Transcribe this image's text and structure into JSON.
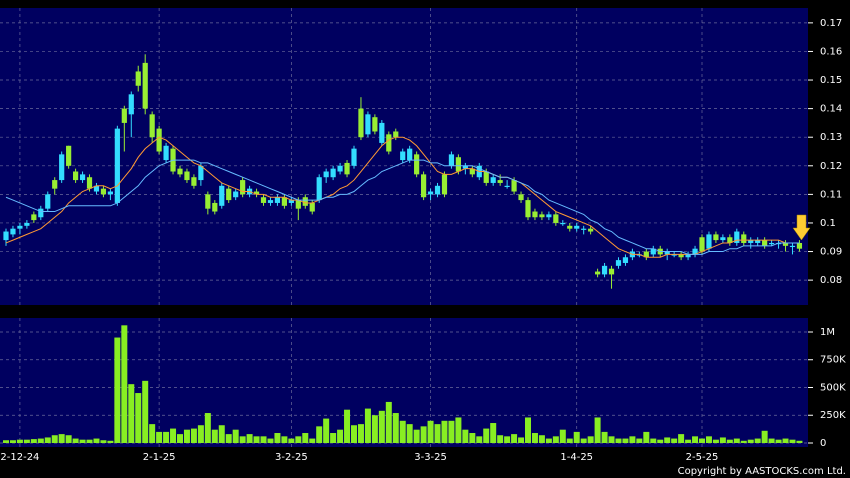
{
  "chart_data": [
    {
      "type": "candlestick",
      "categories": [
        null,
        null,
        "2-12-24",
        null,
        null,
        null,
        null,
        null,
        null,
        null,
        null,
        null,
        null,
        null,
        null,
        null,
        null,
        null,
        null,
        null,
        null,
        null,
        "2-1-25",
        null,
        null,
        null,
        null,
        null,
        null,
        null,
        null,
        null,
        null,
        null,
        null,
        null,
        null,
        null,
        null,
        null,
        null,
        "3-2-25",
        null,
        null,
        null,
        null,
        null,
        null,
        null,
        null,
        null,
        null,
        null,
        null,
        null,
        null,
        null,
        null,
        null,
        null,
        null,
        "3-3-25",
        null,
        null,
        null,
        null,
        null,
        null,
        null,
        null,
        null,
        null,
        null,
        null,
        null,
        null,
        null,
        null,
        null,
        null,
        null,
        null,
        "1-4-25",
        null,
        null,
        null,
        null,
        null,
        null,
        null,
        null,
        null,
        null,
        null,
        null,
        null,
        null,
        null,
        null,
        null,
        "2-5-25",
        null,
        null,
        null,
        null,
        null,
        null,
        null,
        null,
        null,
        null,
        null,
        null,
        null,
        null
      ],
      "open": [
        0.094,
        0.096,
        0.098,
        0.099,
        0.103,
        0.102,
        0.105,
        0.115,
        0.115,
        0.127,
        0.118,
        0.115,
        0.116,
        0.111,
        0.112,
        0.11,
        0.107,
        0.14,
        0.138,
        0.153,
        0.156,
        0.138,
        0.133,
        0.122,
        0.126,
        0.119,
        0.118,
        0.116,
        0.115,
        0.11,
        0.107,
        0.106,
        0.112,
        0.109,
        0.115,
        0.11,
        0.111,
        0.109,
        0.107,
        0.107,
        0.109,
        0.107,
        0.108,
        0.109,
        0.107,
        0.108,
        0.116,
        0.116,
        0.118,
        0.121,
        0.12,
        0.14,
        0.131,
        0.137,
        0.128,
        0.131,
        0.132,
        0.122,
        0.122,
        0.124,
        0.117,
        0.11,
        0.11,
        0.117,
        0.12,
        0.123,
        0.119,
        0.119,
        0.116,
        0.118,
        0.114,
        0.115,
        0.113,
        0.115,
        0.11,
        0.108,
        0.104,
        0.103,
        0.102,
        0.103,
        0.1,
        0.099,
        0.098,
        0.098,
        0.098,
        0.083,
        0.082,
        0.084,
        0.085,
        0.086,
        0.088,
        0.089,
        0.09,
        0.089,
        0.091,
        0.089,
        0.089,
        0.089,
        0.088,
        0.089,
        0.095,
        0.091,
        0.096,
        0.094,
        0.095,
        0.093,
        0.096,
        0.093,
        0.093,
        0.094,
        0.093,
        0.093,
        0.093,
        0.092,
        0.093
      ],
      "high": [
        0.098,
        0.099,
        0.1,
        0.101,
        0.104,
        0.106,
        0.111,
        0.116,
        0.125,
        0.127,
        0.119,
        0.118,
        0.117,
        0.114,
        0.113,
        0.112,
        0.134,
        0.141,
        0.146,
        0.155,
        0.159,
        0.139,
        0.134,
        0.128,
        0.127,
        0.12,
        0.119,
        0.117,
        0.121,
        0.111,
        0.108,
        0.114,
        0.113,
        0.112,
        0.116,
        0.113,
        0.112,
        0.11,
        0.109,
        0.11,
        0.11,
        0.109,
        0.109,
        0.11,
        0.108,
        0.117,
        0.119,
        0.12,
        0.121,
        0.122,
        0.127,
        0.144,
        0.139,
        0.138,
        0.136,
        0.132,
        0.133,
        0.126,
        0.127,
        0.125,
        0.118,
        0.112,
        0.114,
        0.118,
        0.125,
        0.124,
        0.121,
        0.12,
        0.121,
        0.119,
        0.117,
        0.117,
        0.115,
        0.116,
        0.111,
        0.109,
        0.105,
        0.104,
        0.104,
        0.104,
        0.101,
        0.1,
        0.1,
        0.099,
        0.099,
        0.084,
        0.086,
        0.085,
        0.088,
        0.089,
        0.091,
        0.09,
        0.091,
        0.092,
        0.092,
        0.091,
        0.09,
        0.09,
        0.09,
        0.092,
        0.096,
        0.097,
        0.097,
        0.096,
        0.096,
        0.098,
        0.097,
        0.095,
        0.095,
        0.095,
        0.094,
        0.094,
        0.094,
        0.093,
        0.094
      ],
      "low": [
        0.092,
        0.095,
        0.096,
        0.098,
        0.1,
        0.101,
        0.104,
        0.11,
        0.114,
        0.119,
        0.114,
        0.114,
        0.111,
        0.11,
        0.109,
        0.108,
        0.106,
        0.125,
        0.13,
        0.146,
        0.138,
        0.128,
        0.124,
        0.121,
        0.117,
        0.116,
        0.114,
        0.112,
        0.113,
        0.103,
        0.103,
        0.105,
        0.107,
        0.108,
        0.109,
        0.109,
        0.109,
        0.106,
        0.106,
        0.106,
        0.105,
        0.106,
        0.101,
        0.105,
        0.103,
        0.107,
        0.114,
        0.115,
        0.117,
        0.116,
        0.119,
        0.129,
        0.13,
        0.131,
        0.127,
        0.124,
        0.129,
        0.121,
        0.121,
        0.116,
        0.108,
        0.108,
        0.109,
        0.109,
        0.119,
        0.117,
        0.117,
        0.116,
        0.115,
        0.113,
        0.113,
        0.113,
        0.112,
        0.11,
        0.107,
        0.101,
        0.101,
        0.101,
        0.101,
        0.099,
        0.099,
        0.097,
        0.097,
        0.096,
        0.096,
        0.081,
        0.081,
        0.077,
        0.084,
        0.085,
        0.087,
        0.088,
        0.087,
        0.088,
        0.088,
        0.087,
        0.088,
        0.087,
        0.087,
        0.088,
        0.089,
        0.09,
        0.093,
        0.093,
        0.092,
        0.092,
        0.092,
        0.091,
        0.092,
        0.091,
        0.092,
        0.091,
        0.09,
        0.089,
        0.09
      ],
      "close": [
        0.097,
        0.098,
        0.099,
        0.1,
        0.101,
        0.105,
        0.11,
        0.112,
        0.124,
        0.12,
        0.115,
        0.117,
        0.112,
        0.113,
        0.11,
        0.111,
        0.133,
        0.135,
        0.145,
        0.148,
        0.14,
        0.13,
        0.125,
        0.127,
        0.118,
        0.117,
        0.115,
        0.113,
        0.12,
        0.105,
        0.104,
        0.113,
        0.108,
        0.111,
        0.11,
        0.112,
        0.11,
        0.107,
        0.108,
        0.109,
        0.106,
        0.108,
        0.105,
        0.106,
        0.104,
        0.116,
        0.118,
        0.119,
        0.12,
        0.117,
        0.126,
        0.13,
        0.138,
        0.132,
        0.135,
        0.125,
        0.13,
        0.125,
        0.126,
        0.117,
        0.109,
        0.111,
        0.113,
        0.11,
        0.124,
        0.118,
        0.12,
        0.117,
        0.12,
        0.114,
        0.116,
        0.114,
        0.113,
        0.111,
        0.108,
        0.102,
        0.102,
        0.102,
        0.103,
        0.1,
        0.1,
        0.098,
        0.099,
        0.098,
        0.097,
        0.082,
        0.085,
        0.082,
        0.087,
        0.088,
        0.09,
        0.089,
        0.088,
        0.091,
        0.089,
        0.09,
        0.089,
        0.088,
        0.089,
        0.091,
        0.09,
        0.096,
        0.094,
        0.095,
        0.093,
        0.097,
        0.093,
        0.094,
        0.094,
        0.092,
        0.093,
        0.093,
        0.092,
        0.092,
        0.091
      ],
      "up_color": "#33ddff",
      "down_color": "#99ee33",
      "series": [
        {
          "color": "#ff9933",
          "values": [
            0.093,
            0.094,
            0.095,
            0.096,
            0.097,
            0.098,
            0.1,
            0.102,
            0.104,
            0.107,
            0.109,
            0.111,
            0.112,
            0.113,
            0.113,
            0.112,
            0.113,
            0.116,
            0.119,
            0.123,
            0.126,
            0.128,
            0.13,
            0.129,
            0.127,
            0.125,
            0.123,
            0.121,
            0.12,
            0.118,
            0.116,
            0.114,
            0.113,
            0.112,
            0.111,
            0.111,
            0.11,
            0.11,
            0.109,
            0.109,
            0.109,
            0.108,
            0.108,
            0.107,
            0.107,
            0.108,
            0.109,
            0.11,
            0.112,
            0.113,
            0.115,
            0.118,
            0.121,
            0.124,
            0.127,
            0.129,
            0.13,
            0.13,
            0.129,
            0.127,
            0.124,
            0.121,
            0.118,
            0.117,
            0.117,
            0.118,
            0.119,
            0.119,
            0.118,
            0.118,
            0.117,
            0.116,
            0.116,
            0.115,
            0.114,
            0.112,
            0.11,
            0.108,
            0.106,
            0.104,
            0.103,
            0.102,
            0.101,
            0.1,
            0.099,
            0.097,
            0.095,
            0.093,
            0.091,
            0.09,
            0.089,
            0.089,
            0.088,
            0.088,
            0.088,
            0.089,
            0.089,
            0.089,
            0.089,
            0.089,
            0.09,
            0.091,
            0.092,
            0.093,
            0.093,
            0.094,
            0.094,
            0.094,
            0.094,
            0.094,
            0.094,
            0.094,
            0.093,
            0.093,
            0.093
          ]
        },
        {
          "color": "#66bbff",
          "values": [
            0.109,
            0.108,
            0.107,
            0.106,
            0.105,
            0.104,
            0.104,
            0.104,
            0.105,
            0.106,
            0.106,
            0.106,
            0.106,
            0.106,
            0.106,
            0.106,
            0.107,
            0.109,
            0.111,
            0.113,
            0.116,
            0.118,
            0.12,
            0.121,
            0.122,
            0.122,
            0.122,
            0.122,
            0.121,
            0.121,
            0.12,
            0.119,
            0.118,
            0.117,
            0.116,
            0.115,
            0.114,
            0.113,
            0.112,
            0.111,
            0.11,
            0.109,
            0.108,
            0.108,
            0.108,
            0.108,
            0.109,
            0.109,
            0.11,
            0.11,
            0.111,
            0.113,
            0.115,
            0.116,
            0.118,
            0.119,
            0.12,
            0.121,
            0.122,
            0.122,
            0.122,
            0.121,
            0.121,
            0.12,
            0.12,
            0.12,
            0.12,
            0.12,
            0.119,
            0.118,
            0.117,
            0.116,
            0.116,
            0.115,
            0.114,
            0.113,
            0.111,
            0.11,
            0.108,
            0.107,
            0.106,
            0.105,
            0.104,
            0.103,
            0.101,
            0.1,
            0.098,
            0.097,
            0.095,
            0.094,
            0.093,
            0.092,
            0.091,
            0.091,
            0.09,
            0.09,
            0.09,
            0.09,
            0.089,
            0.089,
            0.089,
            0.09,
            0.09,
            0.09,
            0.091,
            0.091,
            0.092,
            0.092,
            0.092,
            0.092,
            0.092,
            0.093,
            0.093,
            0.093,
            0.093
          ]
        }
      ],
      "ylim": [
        0.0713,
        0.1752
      ],
      "yticks": [
        0.08,
        0.09,
        0.1,
        0.11,
        0.12,
        0.13,
        0.14,
        0.15,
        0.16,
        0.17
      ],
      "grid": true
    },
    {
      "type": "bar",
      "values": [
        25000,
        25000,
        30000,
        30000,
        35000,
        40000,
        50000,
        70000,
        80000,
        70000,
        40000,
        30000,
        30000,
        40000,
        25000,
        20000,
        950000,
        1060000,
        530000,
        450000,
        560000,
        170000,
        100000,
        100000,
        130000,
        80000,
        120000,
        130000,
        160000,
        270000,
        120000,
        160000,
        80000,
        120000,
        60000,
        80000,
        60000,
        60000,
        40000,
        90000,
        60000,
        40000,
        60000,
        90000,
        40000,
        150000,
        220000,
        90000,
        120000,
        300000,
        160000,
        170000,
        310000,
        250000,
        290000,
        370000,
        270000,
        200000,
        170000,
        120000,
        150000,
        200000,
        170000,
        200000,
        200000,
        230000,
        120000,
        90000,
        60000,
        130000,
        180000,
        70000,
        60000,
        80000,
        50000,
        230000,
        90000,
        70000,
        40000,
        60000,
        120000,
        40000,
        100000,
        40000,
        60000,
        230000,
        100000,
        60000,
        40000,
        40000,
        60000,
        40000,
        100000,
        40000,
        30000,
        50000,
        40000,
        80000,
        30000,
        60000,
        40000,
        60000,
        30000,
        50000,
        30000,
        40000,
        20000,
        30000,
        40000,
        110000,
        40000,
        30000,
        40000,
        30000,
        20000
      ],
      "color": "#88ee22",
      "ylim": [
        -36000,
        1126000
      ],
      "yticks": [
        0,
        {
          "value": 250000,
          "label": "250K"
        },
        {
          "value": 500000,
          "label": "500K"
        },
        {
          "value": 750000,
          "label": "750K"
        },
        {
          "value": 1000000,
          "label": "1M"
        }
      ],
      "grid": true
    }
  ],
  "footer": "Copyright by AASTOCKS.com Ltd."
}
